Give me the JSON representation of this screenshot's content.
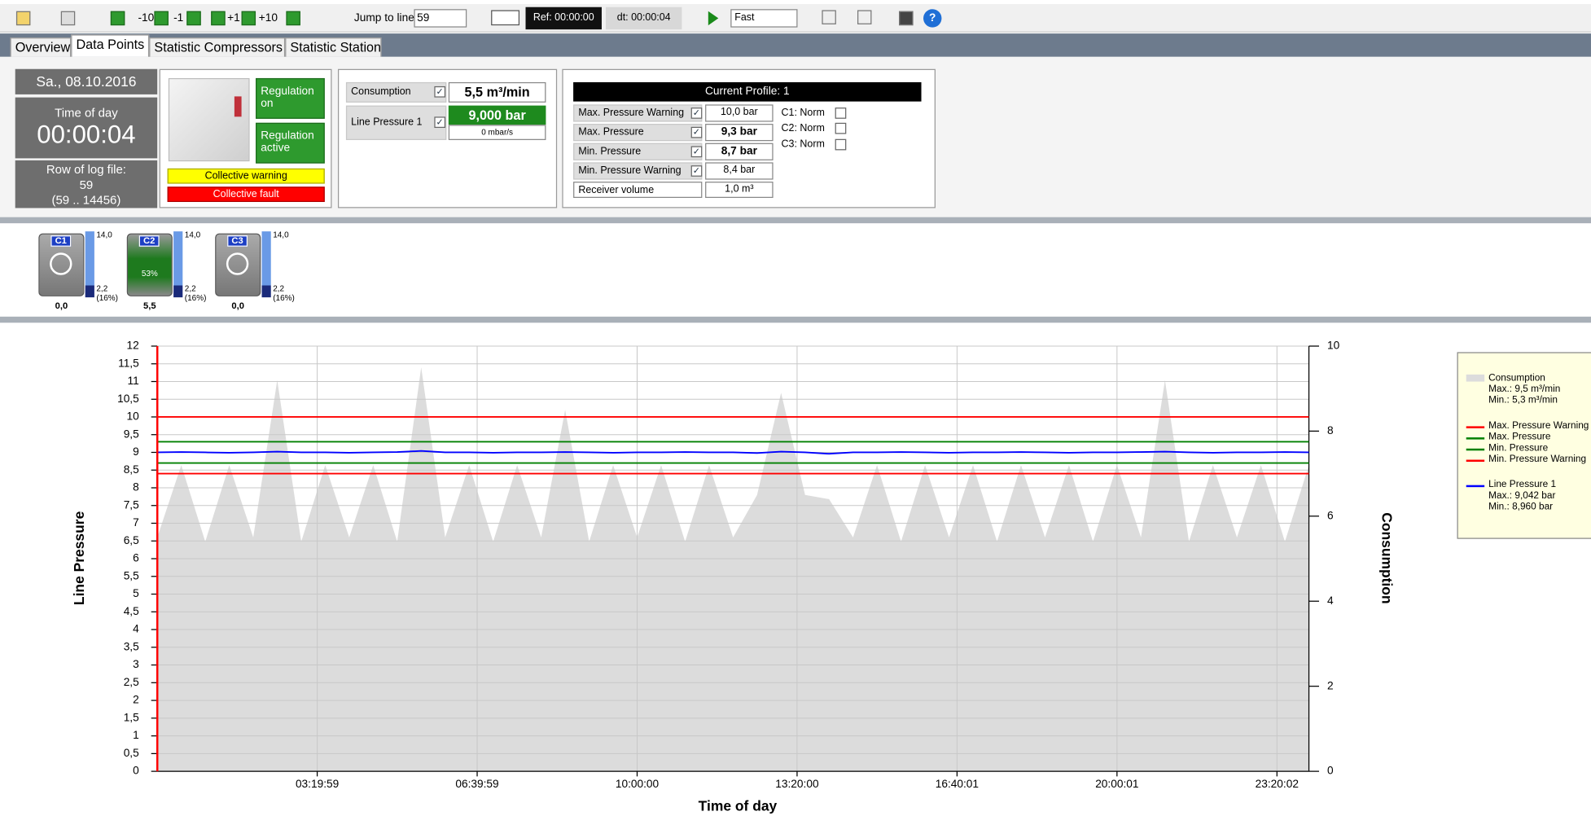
{
  "toolbar": {
    "step_buttons": [
      "-10",
      "-1",
      "+1",
      "+10"
    ],
    "jump_label": "Jump to line",
    "jump_value": "59",
    "ref": "Ref: 00:00:00",
    "dt": "dt: 00:00:04",
    "speed": "Fast"
  },
  "tabs": {
    "items": [
      "Overview",
      "Data Points",
      "Statistic Compressors",
      "Statistic Station"
    ],
    "active": 1
  },
  "status": {
    "date": "Sa., 08.10.2016",
    "time_label": "Time of day",
    "time": "00:00:04",
    "row_label": "Row of log file:",
    "row": "59",
    "row_range": "(59 .. 14456)"
  },
  "regulation": {
    "buttons": [
      "Regulation on",
      "Regulation active"
    ],
    "warning": "Collective warning",
    "fault": "Collective fault"
  },
  "measurements": {
    "consumption_label": "Consumption",
    "consumption_value": "5,5 m³/min",
    "pressure_label": "Line Pressure 1",
    "pressure_value": "9,000 bar",
    "pressure_rate": "0 mbar/s"
  },
  "profile": {
    "title": "Current Profile: 1",
    "rows": [
      {
        "label": "Max. Pressure Warning",
        "value": "10,0 bar"
      },
      {
        "label": "Max. Pressure",
        "value": "9,3 bar"
      },
      {
        "label": "Min. Pressure",
        "value": "8,7 bar"
      },
      {
        "label": "Min. Pressure Warning",
        "value": "8,4 bar"
      }
    ],
    "receiver_label": "Receiver volume",
    "receiver_value": "1,0 m³",
    "compressor_states": [
      "C1: Norm",
      "C2: Norm",
      "C3: Norm"
    ]
  },
  "compressors": [
    {
      "name": "C1",
      "value": "0,0",
      "max": "14,0",
      "min": "2,2",
      "min_pct": "(16%)"
    },
    {
      "name": "C2",
      "load": "53%",
      "value": "5,5",
      "max": "14,0",
      "min": "2,2",
      "min_pct": "(16%)"
    },
    {
      "name": "C3",
      "value": "0,0",
      "max": "14,0",
      "min": "2,2",
      "min_pct": "(16%)"
    }
  ],
  "chart_data": {
    "type": "line",
    "x_label": "Time of day",
    "y_label": "Line Pressure",
    "y2_label": "Consumption",
    "grid": true,
    "xlim": [
      0,
      86400
    ],
    "xticks": [
      {
        "value": 11999,
        "label": "03:19:59"
      },
      {
        "value": 23999,
        "label": "06:39:59"
      },
      {
        "value": 36000,
        "label": "10:00:00"
      },
      {
        "value": 48000,
        "label": "13:20:00"
      },
      {
        "value": 60001,
        "label": "16:40:01"
      },
      {
        "value": 72001,
        "label": "20:00:01"
      },
      {
        "value": 84002,
        "label": "23:20:02"
      }
    ],
    "ylim": [
      0,
      12
    ],
    "yticks": [
      0,
      {
        "value": 0.5,
        "label": "0,5"
      },
      1,
      {
        "value": 1.5,
        "label": "1,5"
      },
      2,
      {
        "value": 2.5,
        "label": "2,5"
      },
      3,
      {
        "value": 3.5,
        "label": "3,5"
      },
      4,
      {
        "value": 4.5,
        "label": "4,5"
      },
      5,
      {
        "value": 5.5,
        "label": "5,5"
      },
      6,
      {
        "value": 6.5,
        "label": "6,5"
      },
      7,
      {
        "value": 7.5,
        "label": "7,5"
      },
      8,
      {
        "value": 8.5,
        "label": "8,5"
      },
      9,
      {
        "value": 9.5,
        "label": "9,5"
      },
      10,
      {
        "value": 10.5,
        "label": "10,5"
      },
      11,
      {
        "value": 11.5,
        "label": "11,5"
      },
      12
    ],
    "y2lim": [
      0,
      10
    ],
    "y2ticks": [
      0,
      2,
      4,
      6,
      8,
      10
    ],
    "x": [
      0,
      1800,
      3600,
      5400,
      7200,
      9000,
      10800,
      12600,
      14400,
      16200,
      18000,
      19800,
      21600,
      23400,
      25200,
      27000,
      28800,
      30600,
      32400,
      34200,
      36000,
      37800,
      39600,
      41400,
      43200,
      45000,
      46800,
      48600,
      50400,
      52200,
      54000,
      55800,
      57600,
      59400,
      61200,
      63000,
      64800,
      66600,
      68400,
      70200,
      72000,
      73800,
      75600,
      77400,
      79200,
      81000,
      82800,
      84600,
      86400
    ],
    "series": [
      {
        "name": "Consumption",
        "color": "#dcdcdc",
        "axis": "y2",
        "style": "area",
        "legend_lines": [
          "Max.: 9,5 m³/min",
          "Min.: 5,3 m³/min"
        ],
        "values": [
          5.5,
          7.2,
          5.4,
          7.2,
          5.5,
          9.2,
          5.4,
          7.2,
          5.5,
          7.2,
          5.4,
          9.5,
          5.5,
          7.2,
          5.4,
          7.2,
          5.5,
          8.5,
          5.4,
          7.2,
          5.5,
          7.2,
          5.4,
          7.2,
          5.5,
          6.5,
          8.9,
          6.5,
          6.4,
          5.5,
          7.2,
          5.4,
          7.2,
          5.5,
          7.2,
          5.4,
          7.2,
          5.5,
          7.2,
          5.4,
          7.2,
          5.5,
          9.2,
          5.4,
          7.2,
          5.5,
          7.2,
          5.4,
          7.2
        ]
      },
      {
        "name": "Line Pressure 1",
        "color": "#0000ff",
        "legend_lines": [
          "Max.: 9,042 bar",
          "Min.: 8,960 bar"
        ],
        "values": [
          9.0,
          9.01,
          9.0,
          8.99,
          9.0,
          9.02,
          9.0,
          9.0,
          8.99,
          9.0,
          9.01,
          9.04,
          9.0,
          9.0,
          8.99,
          9.0,
          9.0,
          9.01,
          9.0,
          8.99,
          9.0,
          9.0,
          9.01,
          9.0,
          9.0,
          8.98,
          9.02,
          9.0,
          8.96,
          9.0,
          9.0,
          9.01,
          9.0,
          8.99,
          9.0,
          9.0,
          9.01,
          9.0,
          8.99,
          9.0,
          9.0,
          9.01,
          9.02,
          9.0,
          8.99,
          9.0,
          9.0,
          9.01,
          9.0
        ]
      }
    ],
    "thresholds": [
      {
        "name": "Max. Pressure Warning",
        "value": 10,
        "color": "#ff0000"
      },
      {
        "name": "Max. Pressure",
        "value": 9.3,
        "color": "#008000"
      },
      {
        "name": "Min. Pressure",
        "value": 8.7,
        "color": "#008000"
      },
      {
        "name": "Min. Pressure Warning",
        "value": 8.4,
        "color": "#ff0000"
      }
    ],
    "cursor": {
      "x": 4,
      "color": "#ff0000"
    }
  }
}
